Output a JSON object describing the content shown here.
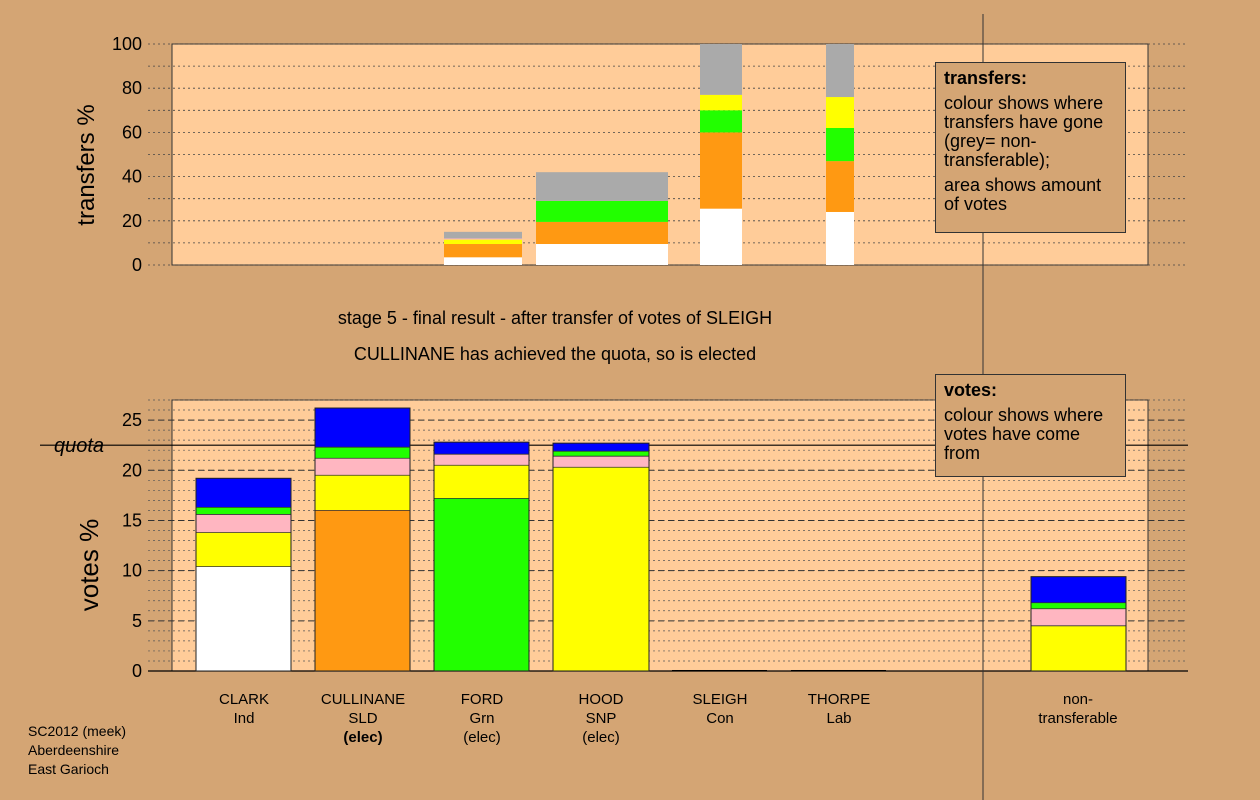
{
  "chart_data": [
    {
      "type": "bar",
      "stacked": true,
      "ylabel": "transfers %",
      "ylim": [
        0,
        100
      ],
      "yticks": [
        0,
        20,
        40,
        60,
        80,
        100
      ],
      "grid": true,
      "bars": [
        {
          "name": "CLARK",
          "segments": [
            {
              "color": "#ffffff",
              "value": 3.5
            },
            {
              "color": "#ff9912",
              "value": 6
            },
            {
              "color": "#ffff00",
              "value": 2
            },
            {
              "color": "#ffb6c1",
              "value": 0.5
            },
            {
              "color": "#aaaaaa",
              "value": 3
            }
          ]
        },
        {
          "name": "CULLINANE",
          "segments": [
            {
              "color": "#ffffff",
              "value": 9.5
            },
            {
              "color": "#ff9912",
              "value": 10
            },
            {
              "color": "#22ff00",
              "value": 9.5
            },
            {
              "color": "#aaaaaa",
              "value": 13
            }
          ]
        },
        {
          "name": "FORD",
          "segments": [
            {
              "color": "#ffffff",
              "value": 25.5
            },
            {
              "color": "#ff9912",
              "value": 34.5
            },
            {
              "color": "#22ff00",
              "value": 10
            },
            {
              "color": "#ffff00",
              "value": 7
            },
            {
              "color": "#aaaaaa",
              "value": 23
            }
          ]
        },
        {
          "name": "HOOD",
          "segments": [
            {
              "color": "#ffffff",
              "value": 24
            },
            {
              "color": "#ff9912",
              "value": 23
            },
            {
              "color": "#22ff00",
              "value": 15
            },
            {
              "color": "#ffff00",
              "value": 14
            },
            {
              "color": "#aaaaaa",
              "value": 24
            }
          ]
        }
      ]
    },
    {
      "type": "bar",
      "stacked": true,
      "ylabel": "votes %",
      "ylim": [
        0,
        27
      ],
      "yticks": [
        0,
        5,
        10,
        15,
        20,
        25
      ],
      "quota": 22.5,
      "quota_label": "quota",
      "grid": true,
      "bars": [
        {
          "name": "CLARK",
          "segments": [
            {
              "color": "#ffffff",
              "value": 10.4
            },
            {
              "color": "#ffff00",
              "value": 3.4
            },
            {
              "color": "#ffb6c1",
              "value": 1.8
            },
            {
              "color": "#22ff00",
              "value": 0.7
            },
            {
              "color": "#0000ff",
              "value": 2.9
            }
          ]
        },
        {
          "name": "CULLINANE",
          "segments": [
            {
              "color": "#ff9912",
              "value": 16
            },
            {
              "color": "#ffff00",
              "value": 3.5
            },
            {
              "color": "#ffb6c1",
              "value": 1.7
            },
            {
              "color": "#22ff00",
              "value": 1.1
            },
            {
              "color": "#0000ff",
              "value": 3.9
            }
          ]
        },
        {
          "name": "FORD",
          "segments": [
            {
              "color": "#22ff00",
              "value": 17.2
            },
            {
              "color": "#ffff00",
              "value": 3.3
            },
            {
              "color": "#ffb6c1",
              "value": 1.1
            },
            {
              "color": "#0000ff",
              "value": 1.2
            }
          ]
        },
        {
          "name": "HOOD",
          "segments": [
            {
              "color": "#ffff00",
              "value": 20.3
            },
            {
              "color": "#ffb6c1",
              "value": 1.1
            },
            {
              "color": "#22ff00",
              "value": 0.5
            },
            {
              "color": "#0000ff",
              "value": 0.8
            }
          ]
        },
        {
          "name": "SLEIGH",
          "segments": [
            {
              "color": "#000000",
              "value": 0.1
            }
          ]
        },
        {
          "name": "THORPE",
          "segments": [
            {
              "color": "#000000",
              "value": 0.1
            }
          ]
        },
        {
          "name": "non-transferable",
          "segments": [
            {
              "color": "#ffff00",
              "value": 4.5
            },
            {
              "color": "#ffb6c1",
              "value": 1.7
            },
            {
              "color": "#22ff00",
              "value": 0.6
            },
            {
              "color": "#0000ff",
              "value": 2.6
            }
          ]
        }
      ]
    }
  ],
  "legend_transfers": {
    "title": "transfers:",
    "line1": "colour shows where transfers have gone (grey= non-transferable);",
    "line2": "area shows amount of votes"
  },
  "legend_votes": {
    "title": "votes:",
    "line1": "colour shows where votes have come from"
  },
  "stage_title": "stage 5 - final result - after transfer of votes of SLEIGH",
  "stage_subtitle": "CULLINANE has achieved the quota, so is elected",
  "candidates": [
    {
      "name": "CLARK",
      "party": "Ind",
      "status": ""
    },
    {
      "name": "CULLINANE",
      "party": "SLD",
      "status": "(elec)"
    },
    {
      "name": "FORD",
      "party": "Grn",
      "status": "(elec)"
    },
    {
      "name": "HOOD",
      "party": "SNP",
      "status": "(elec)"
    },
    {
      "name": "SLEIGH",
      "party": "Con",
      "status": ""
    },
    {
      "name": "THORPE",
      "party": "Lab",
      "status": ""
    }
  ],
  "nontransferable_label": {
    "line1": "non-",
    "line2": "transferable"
  },
  "footer": {
    "line1": "SC2012 (meek)",
    "line2": "Aberdeenshire",
    "line3": "East Garioch"
  }
}
